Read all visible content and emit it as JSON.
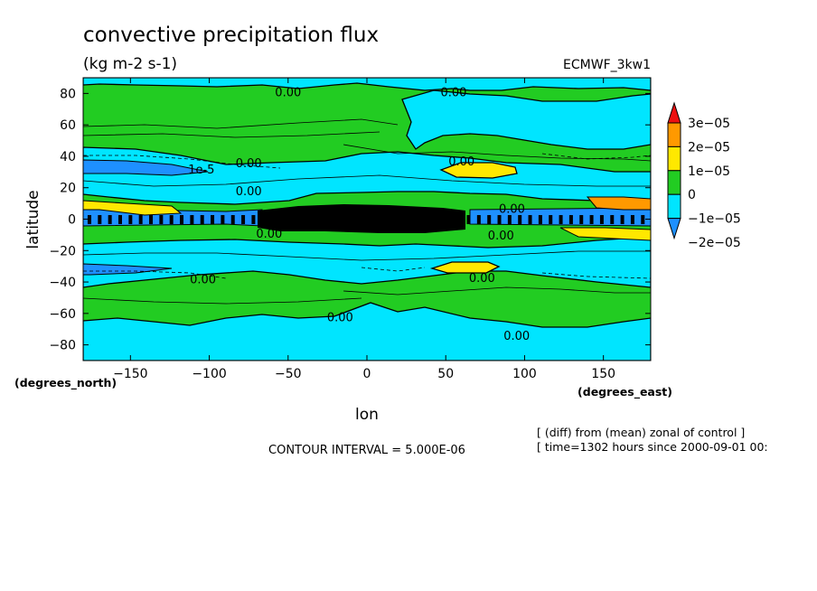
{
  "chart_data": {
    "type": "heatmap",
    "title": "convective precipitation flux",
    "units": "(kg m-2 s-1)",
    "model": "ECMWF_3kw1",
    "xlabel": "lon",
    "ylabel": "latitude",
    "x_unit": "(degrees_east)",
    "y_unit": "(degrees_north)",
    "xlim": [
      -180,
      180
    ],
    "ylim": [
      -90,
      90
    ],
    "x_ticks": [
      -150,
      -100,
      -50,
      0,
      50,
      100,
      150
    ],
    "y_ticks": [
      -80,
      -60,
      -40,
      -20,
      0,
      20,
      40,
      60,
      80
    ],
    "contour_interval": "CONTOUR INTERVAL = 5.000E-06",
    "notes": [
      "[ (diff) from (mean) zonal of control ]",
      "[ time=1302 hours since 2000-09-01 00:"
    ],
    "colorbar": {
      "levels": [
        "-2e-05",
        "-1e-05",
        "0",
        "1e-05",
        "2e-05",
        "3e-05"
      ],
      "colors": [
        "#1e90ff",
        "#00e5ff",
        "#22cc22",
        "#ffe800",
        "#ff9900",
        "#ee1111"
      ]
    },
    "contour_labels": [
      {
        "text": "0.00",
        "lon": -50,
        "lat": 81
      },
      {
        "text": "0.00",
        "lon": 55,
        "lat": 81
      },
      {
        "text": "1e-5",
        "lon": -105,
        "lat": 32
      },
      {
        "text": "0.00",
        "lon": -75,
        "lat": 36
      },
      {
        "text": "0.00",
        "lon": 60,
        "lat": 37
      },
      {
        "text": "0.00",
        "lon": -75,
        "lat": 18
      },
      {
        "text": "0.00",
        "lon": 92,
        "lat": 7
      },
      {
        "text": "0.00",
        "lon": -62,
        "lat": -9
      },
      {
        "text": "0.00",
        "lon": 85,
        "lat": -10
      },
      {
        "text": "0.00",
        "lon": -104,
        "lat": -38
      },
      {
        "text": "0.00",
        "lon": 73,
        "lat": -37
      },
      {
        "text": "0.00",
        "lon": -17,
        "lat": -62
      },
      {
        "text": "0.00",
        "lon": 95,
        "lat": -74
      }
    ]
  }
}
